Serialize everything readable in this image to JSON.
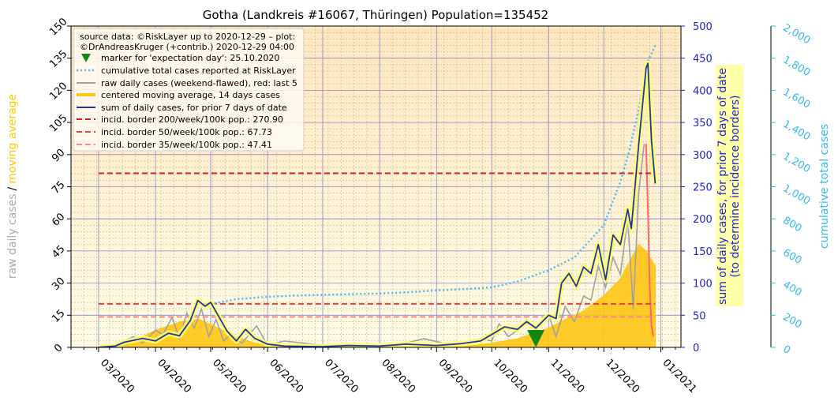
{
  "chart_data": {
    "type": "line",
    "title": "Gotha (Landkreis #16067, Thüringen) Population=135452",
    "x_ticks": [
      "03/2020",
      "04/2020",
      "05/2020",
      "06/2020",
      "07/2020",
      "08/2020",
      "09/2020",
      "10/2020",
      "11/2020",
      "12/2020",
      "01/2021"
    ],
    "x_range": [
      "2020-02-15",
      "2021-01-12"
    ],
    "left_axis": {
      "label_raw": "raw daily cases",
      "label_sep": "/",
      "label_ma": "moving average",
      "ylim": [
        0,
        150
      ],
      "ticks": [
        "0",
        "15",
        "30",
        "45",
        "60",
        "75",
        "90",
        "105",
        "120",
        "135",
        "150"
      ]
    },
    "right_axis": {
      "label_line1": "sum of daily cases, for prior 7 days of date",
      "label_line2": "(to determine incidence borders)",
      "ylim": [
        0,
        500
      ],
      "ticks": [
        "0",
        "50",
        "100",
        "150",
        "200",
        "250",
        "300",
        "350",
        "400",
        "450",
        "500"
      ]
    },
    "far_axis": {
      "label": "cumulative total cases",
      "ylim": [
        0,
        2000
      ],
      "ticks": [
        "0",
        "200",
        "400",
        "600",
        "800",
        "1,000",
        "1,200",
        "1,400",
        "1,600",
        "1,800",
        "2,000"
      ]
    },
    "legend": {
      "source_line1": "source data: ©RiskLayer up to 2020-12-29 – plot:",
      "source_line2": "©DrAndreasKruger (+contrib.) 2020-12-29 04:00",
      "entries": [
        "marker for 'expectation day': 25.10.2020",
        "cumulative total cases reported at RiskLayer",
        "raw daily cases (weekend-flawed), red: last 5",
        "centered moving average, 14 days cases",
        "sum of daily cases, for prior 7 days of date",
        "incid. border 200/week/100k pop.: 270.90",
        "incid. border 50/week/100k pop.: 67.73",
        "incid. border 35/week/100k pop.: 47.41"
      ]
    },
    "expectation_day": "2020-10-25",
    "incidence_borders": [
      270.9,
      67.73,
      47.41
    ],
    "series": [
      {
        "name": "cumulative total cases reported at RiskLayer",
        "axis": "far",
        "points": [
          [
            "2020-05-01",
            270
          ],
          [
            "2020-05-15",
            300
          ],
          [
            "2020-06-01",
            315
          ],
          [
            "2020-06-15",
            322
          ],
          [
            "2020-07-01",
            327
          ],
          [
            "2020-07-15",
            331
          ],
          [
            "2020-08-01",
            335
          ],
          [
            "2020-08-15",
            342
          ],
          [
            "2020-09-01",
            355
          ],
          [
            "2020-09-15",
            362
          ],
          [
            "2020-10-01",
            373
          ],
          [
            "2020-10-15",
            410
          ],
          [
            "2020-11-01",
            480
          ],
          [
            "2020-11-15",
            560
          ],
          [
            "2020-12-01",
            760
          ],
          [
            "2020-12-10",
            1030
          ],
          [
            "2020-12-15",
            1230
          ],
          [
            "2020-12-20",
            1480
          ],
          [
            "2020-12-25",
            1780
          ],
          [
            "2020-12-29",
            1880
          ]
        ]
      },
      {
        "name": "centered moving average, 14 days cases",
        "axis": "left",
        "points": [
          [
            "2020-03-01",
            0
          ],
          [
            "2020-03-10",
            0.5
          ],
          [
            "2020-03-20",
            3
          ],
          [
            "2020-04-01",
            8
          ],
          [
            "2020-04-15",
            12
          ],
          [
            "2020-04-25",
            13
          ],
          [
            "2020-05-05",
            9
          ],
          [
            "2020-05-15",
            5
          ],
          [
            "2020-05-25",
            2
          ],
          [
            "2020-06-10",
            1
          ],
          [
            "2020-07-01",
            0.5
          ],
          [
            "2020-08-01",
            0.5
          ],
          [
            "2020-09-01",
            0.6
          ],
          [
            "2020-09-20",
            0.8
          ],
          [
            "2020-10-01",
            2
          ],
          [
            "2020-10-15",
            4
          ],
          [
            "2020-11-01",
            9
          ],
          [
            "2020-11-10",
            13
          ],
          [
            "2020-11-20",
            17
          ],
          [
            "2020-12-01",
            24
          ],
          [
            "2020-12-10",
            32
          ],
          [
            "2020-12-15",
            40
          ],
          [
            "2020-12-20",
            48
          ],
          [
            "2020-12-24",
            45
          ],
          [
            "2020-12-29",
            38
          ]
        ]
      },
      {
        "name": "raw daily cases (weekend-flawed), red: last 5",
        "axis": "left",
        "points": [
          [
            "2020-03-01",
            0
          ],
          [
            "2020-03-10",
            1
          ],
          [
            "2020-03-15",
            3
          ],
          [
            "2020-03-20",
            5
          ],
          [
            "2020-03-25",
            2
          ],
          [
            "2020-04-01",
            8
          ],
          [
            "2020-04-05",
            6
          ],
          [
            "2020-04-10",
            14
          ],
          [
            "2020-04-14",
            4
          ],
          [
            "2020-04-18",
            16
          ],
          [
            "2020-04-22",
            9
          ],
          [
            "2020-04-26",
            18
          ],
          [
            "2020-04-30",
            5
          ],
          [
            "2020-05-04",
            13
          ],
          [
            "2020-05-08",
            3
          ],
          [
            "2020-05-12",
            6
          ],
          [
            "2020-05-18",
            2
          ],
          [
            "2020-05-26",
            10
          ],
          [
            "2020-06-01",
            1
          ],
          [
            "2020-06-10",
            3
          ],
          [
            "2020-07-01",
            1
          ],
          [
            "2020-07-20",
            1
          ],
          [
            "2020-08-10",
            1
          ],
          [
            "2020-08-25",
            4
          ],
          [
            "2020-09-10",
            1
          ],
          [
            "2020-09-25",
            4
          ],
          [
            "2020-10-01",
            3
          ],
          [
            "2020-10-05",
            11
          ],
          [
            "2020-10-10",
            5
          ],
          [
            "2020-10-15",
            8
          ],
          [
            "2020-10-20",
            13
          ],
          [
            "2020-10-25",
            9
          ],
          [
            "2020-11-01",
            15
          ],
          [
            "2020-11-05",
            5
          ],
          [
            "2020-11-10",
            19
          ],
          [
            "2020-11-15",
            12
          ],
          [
            "2020-11-20",
            24
          ],
          [
            "2020-11-24",
            22
          ],
          [
            "2020-11-28",
            38
          ],
          [
            "2020-12-02",
            28
          ],
          [
            "2020-12-06",
            42
          ],
          [
            "2020-12-10",
            34
          ],
          [
            "2020-12-14",
            60
          ],
          [
            "2020-12-17",
            18
          ],
          [
            "2020-12-20",
            72
          ],
          [
            "2020-12-23",
            95
          ]
        ]
      },
      {
        "name": "raw daily cases, last 5 days",
        "axis": "left",
        "color": "#ff6666",
        "points": [
          [
            "2020-12-24",
            95
          ],
          [
            "2020-12-25",
            65
          ],
          [
            "2020-12-26",
            28
          ],
          [
            "2020-12-27",
            10
          ],
          [
            "2020-12-28",
            5
          ]
        ]
      },
      {
        "name": "sum of daily cases, for prior 7 days of date",
        "axis": "right",
        "points": [
          [
            "2020-03-01",
            0
          ],
          [
            "2020-03-10",
            2
          ],
          [
            "2020-03-15",
            8
          ],
          [
            "2020-03-25",
            14
          ],
          [
            "2020-04-01",
            10
          ],
          [
            "2020-04-08",
            22
          ],
          [
            "2020-04-14",
            18
          ],
          [
            "2020-04-20",
            42
          ],
          [
            "2020-04-24",
            73
          ],
          [
            "2020-04-28",
            64
          ],
          [
            "2020-05-01",
            70
          ],
          [
            "2020-05-05",
            50
          ],
          [
            "2020-05-10",
            25
          ],
          [
            "2020-05-15",
            10
          ],
          [
            "2020-05-20",
            28
          ],
          [
            "2020-05-25",
            14
          ],
          [
            "2020-06-01",
            5
          ],
          [
            "2020-06-10",
            2
          ],
          [
            "2020-07-01",
            1
          ],
          [
            "2020-07-15",
            3
          ],
          [
            "2020-08-01",
            2
          ],
          [
            "2020-08-15",
            5
          ],
          [
            "2020-09-01",
            3
          ],
          [
            "2020-09-15",
            6
          ],
          [
            "2020-09-25",
            10
          ],
          [
            "2020-10-01",
            20
          ],
          [
            "2020-10-08",
            32
          ],
          [
            "2020-10-15",
            28
          ],
          [
            "2020-10-20",
            40
          ],
          [
            "2020-10-25",
            30
          ],
          [
            "2020-11-01",
            50
          ],
          [
            "2020-11-05",
            45
          ],
          [
            "2020-11-08",
            100
          ],
          [
            "2020-11-12",
            115
          ],
          [
            "2020-11-16",
            95
          ],
          [
            "2020-11-20",
            125
          ],
          [
            "2020-11-24",
            115
          ],
          [
            "2020-11-28",
            160
          ],
          [
            "2020-12-02",
            105
          ],
          [
            "2020-12-06",
            175
          ],
          [
            "2020-12-10",
            160
          ],
          [
            "2020-12-14",
            215
          ],
          [
            "2020-12-16",
            185
          ],
          [
            "2020-12-20",
            315
          ],
          [
            "2020-12-24",
            435
          ],
          [
            "2020-12-25",
            442
          ],
          [
            "2020-12-27",
            320
          ],
          [
            "2020-12-29",
            255
          ]
        ]
      }
    ],
    "colors": {
      "cumulative": "#4dbbf2",
      "raw": "#a0a0a0",
      "raw_last": "#ff6666",
      "moving_average": "#ffc514",
      "sum7": "#2233aa",
      "border200": "#cc2222",
      "border50": "#dd4444",
      "border35": "#ff8888",
      "marker": "#118811",
      "left_label_raw": "#aaaaaa",
      "left_label_ma": "#ffcc00",
      "right_axis": "#2222cc",
      "far_axis": "#33bbee",
      "band": "#ffff99"
    },
    "grid": true,
    "legend_position": "top-left"
  }
}
